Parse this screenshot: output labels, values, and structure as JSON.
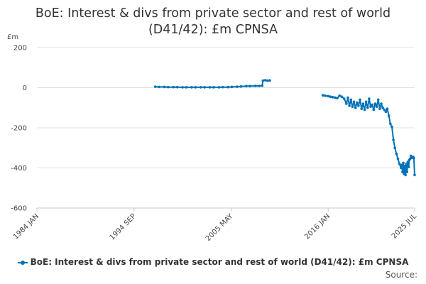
{
  "chart_data": {
    "type": "line",
    "title": "BoE: Interest & divs from private sector and rest of world (D41/42): £m CPNSA",
    "title_lines": [
      "BoE: Interest & divs from private sector and rest of world",
      "(D41/42): £m CPNSA"
    ],
    "ylabel": "£m",
    "xlabel": "",
    "x_ticks": [
      "1984 JAN",
      "1994 SEP",
      "2005 MAY",
      "2016 JAN",
      "2025 JUL"
    ],
    "y_ticks": [
      200,
      0,
      -200,
      -400,
      -600
    ],
    "ylim": [
      -600,
      200
    ],
    "xlim": [
      "1984-01",
      "2025-07"
    ],
    "grid": "horizontal",
    "legend_position": "bottom",
    "source_label": "Source:",
    "series": [
      {
        "name": "BoE: Interest & divs from private sector and rest of world (D41/42): £m CPNSA",
        "color": "#0072b8",
        "points": [
          [
            "1997-01",
            5
          ],
          [
            "1997-06",
            4
          ],
          [
            "1998-01",
            4
          ],
          [
            "1998-06",
            3
          ],
          [
            "1999-01",
            3
          ],
          [
            "1999-06",
            3
          ],
          [
            "2000-01",
            2
          ],
          [
            "2000-06",
            2
          ],
          [
            "2001-01",
            2
          ],
          [
            "2001-06",
            2
          ],
          [
            "2002-01",
            2
          ],
          [
            "2002-06",
            2
          ],
          [
            "2003-01",
            2
          ],
          [
            "2003-06",
            2
          ],
          [
            "2004-01",
            2
          ],
          [
            "2004-06",
            3
          ],
          [
            "2005-01",
            3
          ],
          [
            "2005-06",
            4
          ],
          [
            "2006-01",
            5
          ],
          [
            "2006-06",
            6
          ],
          [
            "2007-01",
            8
          ],
          [
            "2007-06",
            8
          ],
          [
            "2008-01",
            9
          ],
          [
            "2008-06",
            9
          ],
          [
            "2008-10",
            10
          ],
          [
            "2008-11",
            35
          ],
          [
            "2009-02",
            37
          ],
          [
            "2009-05",
            35
          ],
          [
            "2009-08",
            36
          ],
          [
            "2015-06",
            -38
          ],
          [
            "2015-09",
            -40
          ],
          [
            "2016-01",
            -42
          ],
          [
            "2016-04",
            -45
          ],
          [
            "2016-07",
            -47
          ],
          [
            "2016-10",
            -50
          ],
          [
            "2017-01",
            -52
          ],
          [
            "2017-04",
            -40
          ],
          [
            "2017-07",
            -45
          ],
          [
            "2017-10",
            -55
          ],
          [
            "2018-01",
            -80
          ],
          [
            "2018-03",
            -50
          ],
          [
            "2018-05",
            -90
          ],
          [
            "2018-07",
            -60
          ],
          [
            "2018-09",
            -95
          ],
          [
            "2018-11",
            -70
          ],
          [
            "2019-01",
            -100
          ],
          [
            "2019-03",
            -75
          ],
          [
            "2019-05",
            -90
          ],
          [
            "2019-07",
            -60
          ],
          [
            "2019-09",
            -105
          ],
          [
            "2019-11",
            -80
          ],
          [
            "2020-01",
            -110
          ],
          [
            "2020-03",
            -70
          ],
          [
            "2020-05",
            -100
          ],
          [
            "2020-07",
            -55
          ],
          [
            "2020-09",
            -95
          ],
          [
            "2020-11",
            -85
          ],
          [
            "2021-01",
            -110
          ],
          [
            "2021-03",
            -80
          ],
          [
            "2021-05",
            -95
          ],
          [
            "2021-07",
            -60
          ],
          [
            "2021-09",
            -105
          ],
          [
            "2021-11",
            -80
          ],
          [
            "2022-01",
            -100
          ],
          [
            "2022-03",
            -110
          ],
          [
            "2022-05",
            -120
          ],
          [
            "2022-07",
            -105
          ],
          [
            "2022-09",
            -140
          ],
          [
            "2022-11",
            -180
          ],
          [
            "2023-01",
            -195
          ],
          [
            "2023-03",
            -260
          ],
          [
            "2023-05",
            -300
          ],
          [
            "2023-07",
            -330
          ],
          [
            "2023-09",
            -355
          ],
          [
            "2023-11",
            -380
          ],
          [
            "2024-01",
            -400
          ],
          [
            "2024-02",
            -385
          ],
          [
            "2024-03",
            -420
          ],
          [
            "2024-04",
            -375
          ],
          [
            "2024-05",
            -430
          ],
          [
            "2024-06",
            -390
          ],
          [
            "2024-07",
            -435
          ],
          [
            "2024-08",
            -380
          ],
          [
            "2024-09",
            -420
          ],
          [
            "2024-10",
            -370
          ],
          [
            "2024-11",
            -395
          ],
          [
            "2024-12",
            -360
          ],
          [
            "2025-01",
            -355
          ],
          [
            "2025-02",
            -340
          ],
          [
            "2025-03",
            -345
          ],
          [
            "2025-04",
            -350
          ],
          [
            "2025-05",
            -345
          ],
          [
            "2025-06",
            -350
          ],
          [
            "2025-07",
            -435
          ]
        ]
      }
    ]
  }
}
